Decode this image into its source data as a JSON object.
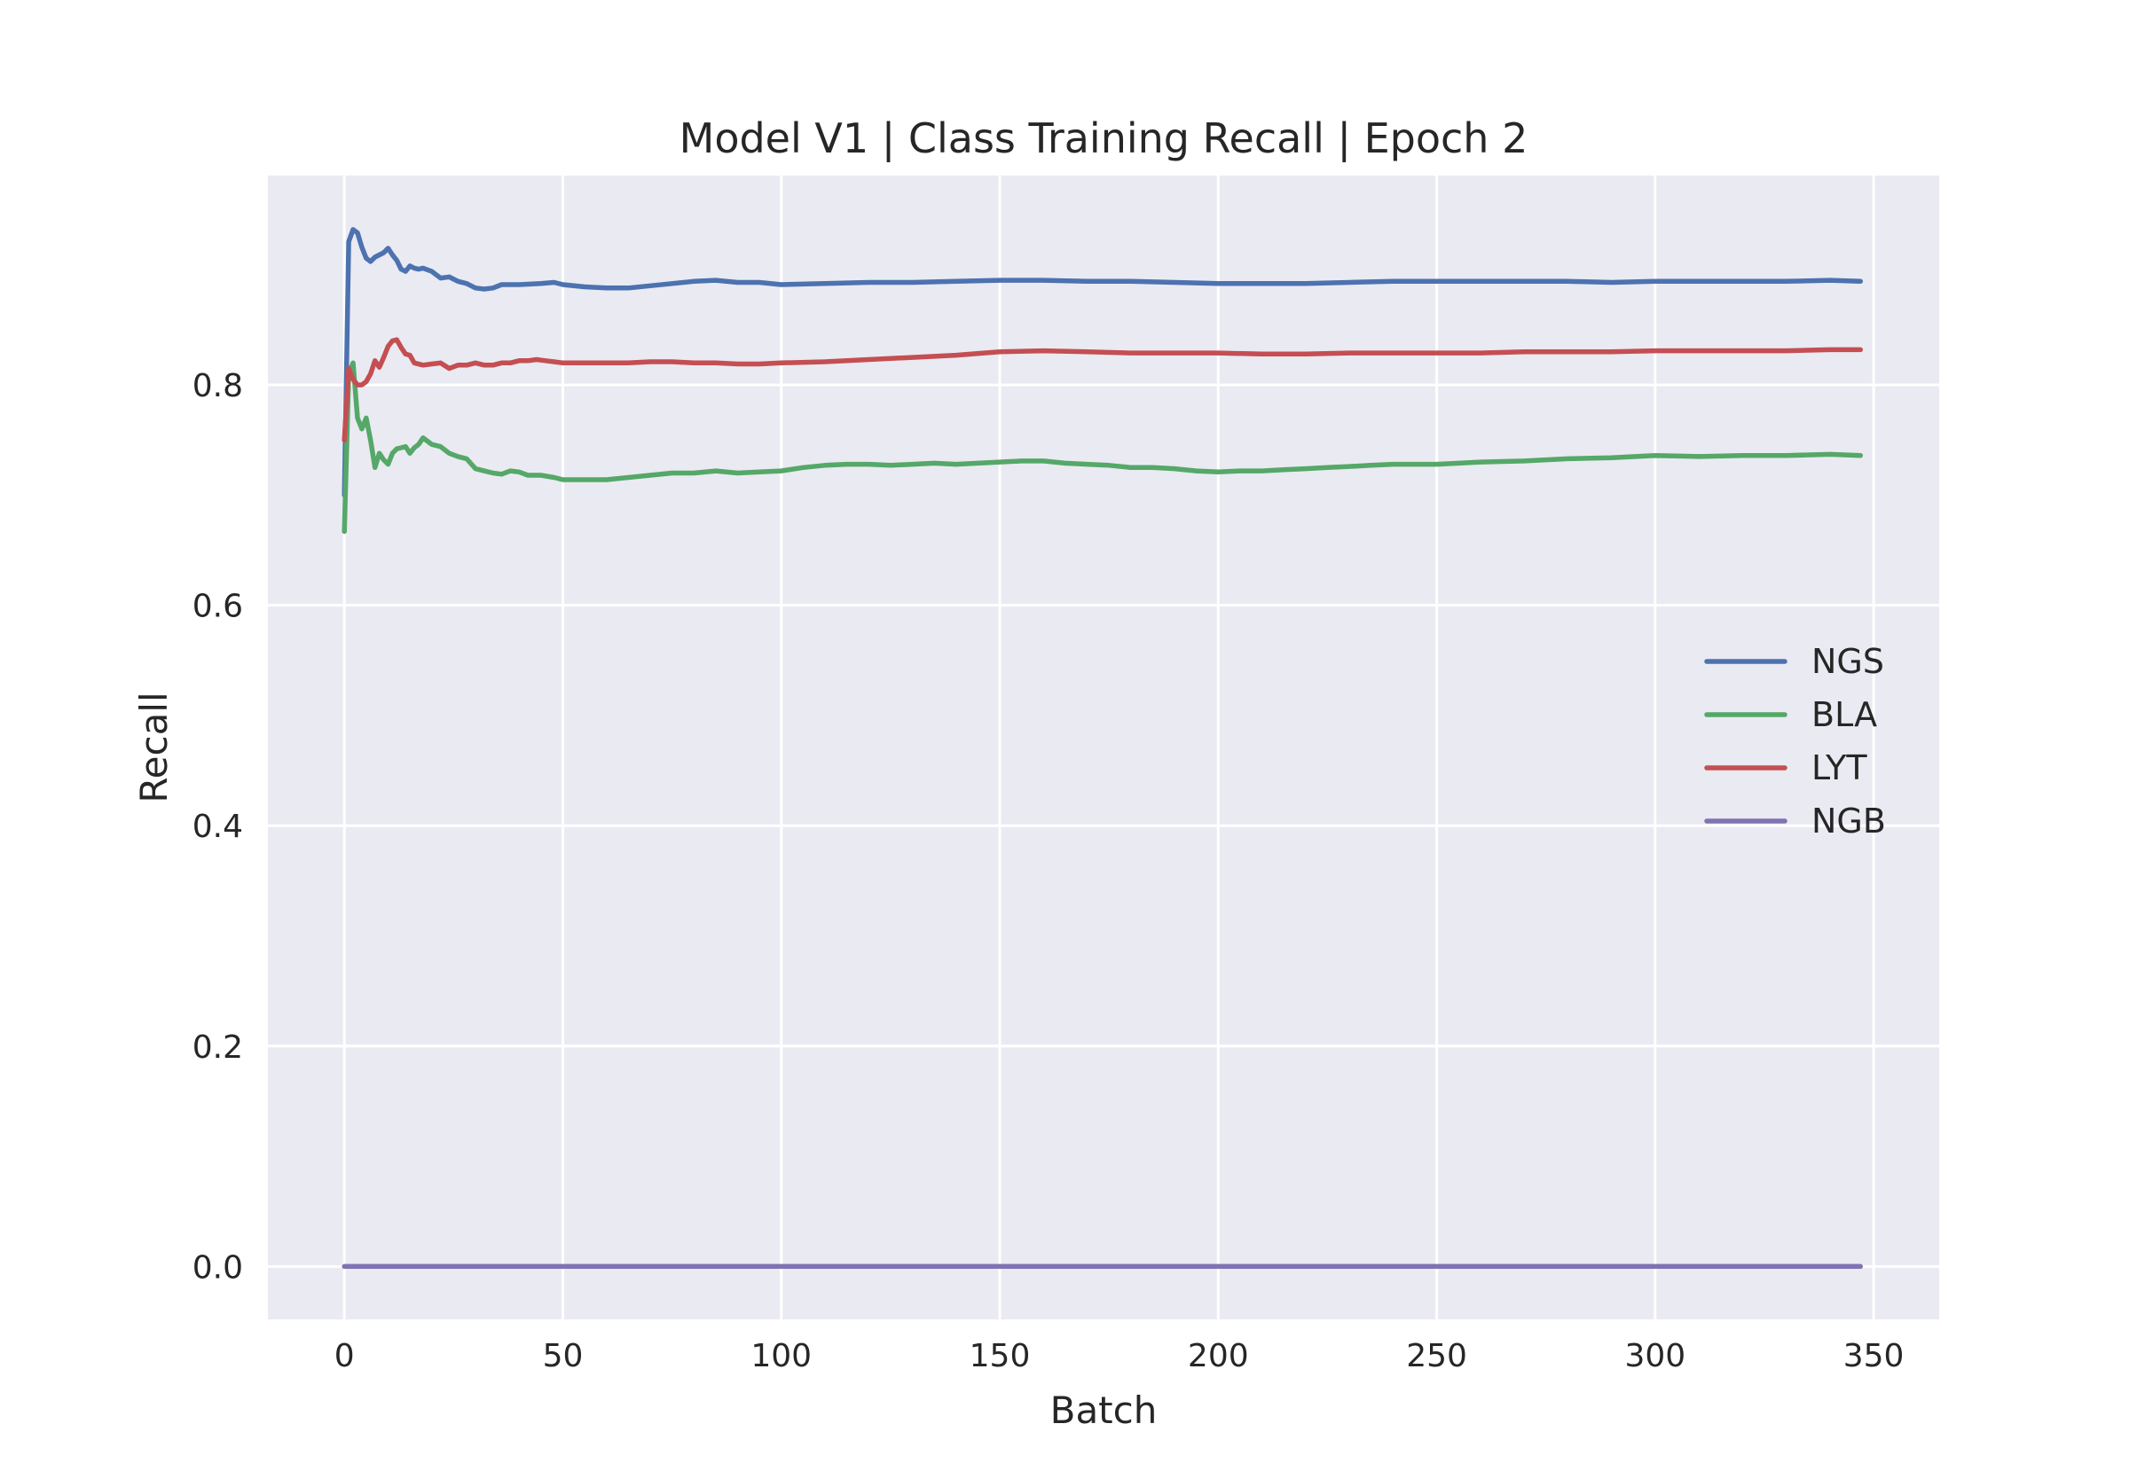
{
  "chart_data": {
    "type": "line",
    "title": "Model V1 | Class Training Recall | Epoch 2",
    "xlabel": "Batch",
    "ylabel": "Recall",
    "xlim": [
      -17.5,
      365
    ],
    "ylim": [
      -0.048,
      0.99
    ],
    "xticks": [
      0,
      50,
      100,
      150,
      200,
      250,
      300,
      350
    ],
    "yticks": [
      0.0,
      0.2,
      0.4,
      0.6,
      0.8
    ],
    "xtick_labels": [
      "0",
      "50",
      "100",
      "150",
      "200",
      "250",
      "300",
      "350"
    ],
    "ytick_labels": [
      "0.0",
      "0.2",
      "0.4",
      "0.6",
      "0.8"
    ],
    "grid": true,
    "legend_position": "center-right",
    "series": [
      {
        "name": "NGS",
        "color": "#4C72B0",
        "points": [
          [
            0,
            0.7
          ],
          [
            1,
            0.93
          ],
          [
            2,
            0.941
          ],
          [
            3,
            0.938
          ],
          [
            4,
            0.925
          ],
          [
            5,
            0.915
          ],
          [
            6,
            0.912
          ],
          [
            7,
            0.916
          ],
          [
            8,
            0.918
          ],
          [
            9,
            0.92
          ],
          [
            10,
            0.924
          ],
          [
            11,
            0.918
          ],
          [
            12,
            0.913
          ],
          [
            13,
            0.905
          ],
          [
            14,
            0.903
          ],
          [
            15,
            0.908
          ],
          [
            16,
            0.906
          ],
          [
            17,
            0.905
          ],
          [
            18,
            0.906
          ],
          [
            20,
            0.903
          ],
          [
            22,
            0.897
          ],
          [
            24,
            0.898
          ],
          [
            26,
            0.894
          ],
          [
            28,
            0.892
          ],
          [
            30,
            0.888
          ],
          [
            32,
            0.887
          ],
          [
            34,
            0.888
          ],
          [
            36,
            0.891
          ],
          [
            40,
            0.891
          ],
          [
            45,
            0.892
          ],
          [
            48,
            0.893
          ],
          [
            50,
            0.891
          ],
          [
            55,
            0.889
          ],
          [
            60,
            0.888
          ],
          [
            65,
            0.888
          ],
          [
            70,
            0.89
          ],
          [
            75,
            0.892
          ],
          [
            80,
            0.894
          ],
          [
            85,
            0.895
          ],
          [
            90,
            0.893
          ],
          [
            95,
            0.893
          ],
          [
            100,
            0.891
          ],
          [
            110,
            0.892
          ],
          [
            120,
            0.893
          ],
          [
            130,
            0.893
          ],
          [
            140,
            0.894
          ],
          [
            150,
            0.895
          ],
          [
            160,
            0.895
          ],
          [
            170,
            0.894
          ],
          [
            180,
            0.894
          ],
          [
            190,
            0.893
          ],
          [
            200,
            0.892
          ],
          [
            210,
            0.892
          ],
          [
            220,
            0.892
          ],
          [
            230,
            0.893
          ],
          [
            240,
            0.894
          ],
          [
            250,
            0.894
          ],
          [
            260,
            0.894
          ],
          [
            270,
            0.894
          ],
          [
            280,
            0.894
          ],
          [
            290,
            0.893
          ],
          [
            300,
            0.894
          ],
          [
            310,
            0.894
          ],
          [
            320,
            0.894
          ],
          [
            330,
            0.894
          ],
          [
            340,
            0.895
          ],
          [
            347,
            0.894
          ]
        ]
      },
      {
        "name": "BLA",
        "color": "#55A868",
        "points": [
          [
            0,
            0.667
          ],
          [
            1,
            0.81
          ],
          [
            2,
            0.82
          ],
          [
            3,
            0.77
          ],
          [
            4,
            0.76
          ],
          [
            5,
            0.77
          ],
          [
            6,
            0.75
          ],
          [
            7,
            0.725
          ],
          [
            8,
            0.738
          ],
          [
            9,
            0.732
          ],
          [
            10,
            0.728
          ],
          [
            11,
            0.738
          ],
          [
            12,
            0.742
          ],
          [
            13,
            0.743
          ],
          [
            14,
            0.744
          ],
          [
            15,
            0.738
          ],
          [
            16,
            0.743
          ],
          [
            17,
            0.746
          ],
          [
            18,
            0.752
          ],
          [
            19,
            0.749
          ],
          [
            20,
            0.746
          ],
          [
            22,
            0.744
          ],
          [
            24,
            0.738
          ],
          [
            26,
            0.735
          ],
          [
            28,
            0.733
          ],
          [
            30,
            0.724
          ],
          [
            32,
            0.722
          ],
          [
            34,
            0.72
          ],
          [
            36,
            0.719
          ],
          [
            38,
            0.722
          ],
          [
            40,
            0.721
          ],
          [
            42,
            0.718
          ],
          [
            45,
            0.718
          ],
          [
            48,
            0.716
          ],
          [
            50,
            0.714
          ],
          [
            55,
            0.714
          ],
          [
            60,
            0.714
          ],
          [
            65,
            0.716
          ],
          [
            70,
            0.718
          ],
          [
            75,
            0.72
          ],
          [
            80,
            0.72
          ],
          [
            85,
            0.722
          ],
          [
            90,
            0.72
          ],
          [
            95,
            0.721
          ],
          [
            100,
            0.722
          ],
          [
            105,
            0.725
          ],
          [
            110,
            0.727
          ],
          [
            115,
            0.728
          ],
          [
            120,
            0.728
          ],
          [
            125,
            0.727
          ],
          [
            130,
            0.728
          ],
          [
            135,
            0.729
          ],
          [
            140,
            0.728
          ],
          [
            145,
            0.729
          ],
          [
            150,
            0.73
          ],
          [
            155,
            0.731
          ],
          [
            160,
            0.731
          ],
          [
            165,
            0.729
          ],
          [
            170,
            0.728
          ],
          [
            175,
            0.727
          ],
          [
            180,
            0.725
          ],
          [
            185,
            0.725
          ],
          [
            190,
            0.724
          ],
          [
            195,
            0.722
          ],
          [
            200,
            0.721
          ],
          [
            205,
            0.722
          ],
          [
            210,
            0.722
          ],
          [
            215,
            0.723
          ],
          [
            220,
            0.724
          ],
          [
            225,
            0.725
          ],
          [
            230,
            0.726
          ],
          [
            235,
            0.727
          ],
          [
            240,
            0.728
          ],
          [
            245,
            0.728
          ],
          [
            250,
            0.728
          ],
          [
            260,
            0.73
          ],
          [
            270,
            0.731
          ],
          [
            280,
            0.733
          ],
          [
            290,
            0.734
          ],
          [
            300,
            0.736
          ],
          [
            310,
            0.735
          ],
          [
            320,
            0.736
          ],
          [
            330,
            0.736
          ],
          [
            340,
            0.737
          ],
          [
            347,
            0.736
          ]
        ]
      },
      {
        "name": "LYT",
        "color": "#C44E52",
        "points": [
          [
            0,
            0.75
          ],
          [
            1,
            0.815
          ],
          [
            2,
            0.805
          ],
          [
            3,
            0.8
          ],
          [
            4,
            0.8
          ],
          [
            5,
            0.803
          ],
          [
            6,
            0.81
          ],
          [
            7,
            0.822
          ],
          [
            8,
            0.816
          ],
          [
            9,
            0.825
          ],
          [
            10,
            0.835
          ],
          [
            11,
            0.84
          ],
          [
            12,
            0.841
          ],
          [
            13,
            0.834
          ],
          [
            14,
            0.828
          ],
          [
            15,
            0.827
          ],
          [
            16,
            0.82
          ],
          [
            18,
            0.818
          ],
          [
            20,
            0.819
          ],
          [
            22,
            0.82
          ],
          [
            24,
            0.815
          ],
          [
            26,
            0.818
          ],
          [
            28,
            0.818
          ],
          [
            30,
            0.82
          ],
          [
            32,
            0.818
          ],
          [
            34,
            0.818
          ],
          [
            36,
            0.82
          ],
          [
            38,
            0.82
          ],
          [
            40,
            0.822
          ],
          [
            42,
            0.822
          ],
          [
            44,
            0.823
          ],
          [
            46,
            0.822
          ],
          [
            48,
            0.821
          ],
          [
            50,
            0.82
          ],
          [
            55,
            0.82
          ],
          [
            60,
            0.82
          ],
          [
            65,
            0.82
          ],
          [
            70,
            0.821
          ],
          [
            75,
            0.821
          ],
          [
            80,
            0.82
          ],
          [
            85,
            0.82
          ],
          [
            90,
            0.819
          ],
          [
            95,
            0.819
          ],
          [
            100,
            0.82
          ],
          [
            110,
            0.821
          ],
          [
            120,
            0.823
          ],
          [
            130,
            0.825
          ],
          [
            140,
            0.827
          ],
          [
            150,
            0.83
          ],
          [
            160,
            0.831
          ],
          [
            170,
            0.83
          ],
          [
            180,
            0.829
          ],
          [
            190,
            0.829
          ],
          [
            200,
            0.829
          ],
          [
            210,
            0.828
          ],
          [
            220,
            0.828
          ],
          [
            230,
            0.829
          ],
          [
            240,
            0.829
          ],
          [
            250,
            0.829
          ],
          [
            260,
            0.829
          ],
          [
            270,
            0.83
          ],
          [
            280,
            0.83
          ],
          [
            290,
            0.83
          ],
          [
            300,
            0.831
          ],
          [
            310,
            0.831
          ],
          [
            320,
            0.831
          ],
          [
            330,
            0.831
          ],
          [
            340,
            0.832
          ],
          [
            347,
            0.832
          ]
        ]
      },
      {
        "name": "NGB",
        "color": "#8172B2",
        "points": [
          [
            0,
            0.0
          ],
          [
            347,
            0.0
          ]
        ]
      }
    ]
  }
}
